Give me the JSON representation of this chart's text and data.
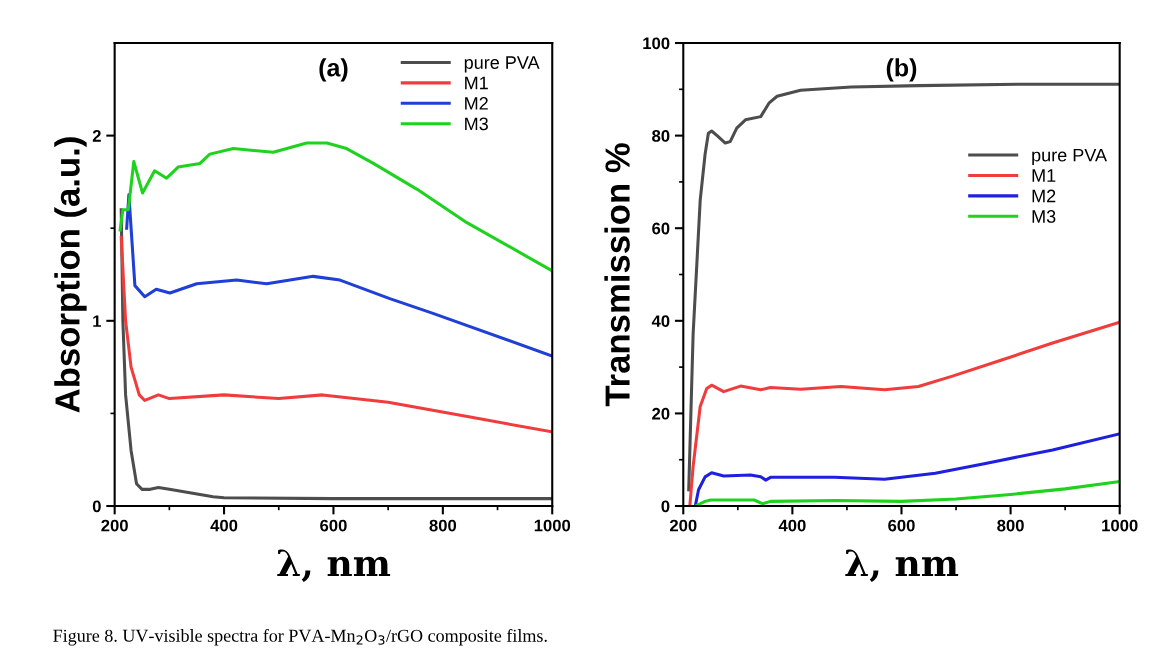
{
  "chart_data": [
    {
      "type": "line",
      "title": "(a)",
      "xlabel": "λ, nm",
      "ylabel": "Absorption (a.u.)",
      "xlim": [
        200,
        1000
      ],
      "ylim": [
        0,
        2.5
      ],
      "xticks": [
        200,
        {
          "value": 300,
          "label": null
        },
        400,
        {
          "value": 500,
          "label": null
        },
        600,
        {
          "value": 700,
          "label": null
        },
        800,
        {
          "value": 900,
          "label": null
        },
        1000
      ],
      "yticks": [
        0,
        {
          "value": 0.5,
          "label": null
        },
        1,
        {
          "value": 1.5,
          "label": null
        },
        2
      ],
      "legend": "top right",
      "grid": false,
      "marker": "none",
      "line_style": "solid",
      "series": [
        {
          "name": "pure PVA",
          "color": "#4d4d4d",
          "x": [
            212,
            215,
            220,
            230,
            240,
            250,
            265,
            280,
            300,
            340,
            380,
            400,
            600,
            1000
          ],
          "values": [
            1.6,
            1.0,
            0.6,
            0.3,
            0.12,
            0.09,
            0.09,
            0.1,
            0.09,
            0.07,
            0.05,
            0.045,
            0.04,
            0.04
          ]
        },
        {
          "name": "M1",
          "color": "#f03c3c",
          "x": [
            212,
            220,
            230,
            245,
            255,
            280,
            300,
            400,
            500,
            580,
            700,
            850,
            1000
          ],
          "values": [
            1.45,
            1.0,
            0.75,
            0.6,
            0.57,
            0.6,
            0.58,
            0.6,
            0.58,
            0.6,
            0.56,
            0.48,
            0.4
          ]
        },
        {
          "name": "M2",
          "color": "#1f3fd6",
          "x": [
            222,
            226,
            237,
            255,
            276,
            301,
            350,
            423,
            478,
            563,
            612,
            703,
            782,
            1000
          ],
          "values": [
            1.5,
            1.68,
            1.19,
            1.13,
            1.17,
            1.15,
            1.2,
            1.22,
            1.2,
            1.24,
            1.22,
            1.12,
            1.04,
            0.81
          ]
        },
        {
          "name": "M3",
          "color": "#1ed21e",
          "x": [
            210,
            215,
            225,
            235,
            251,
            273,
            295,
            316,
            356,
            374,
            417,
            490,
            551,
            588,
            624,
            673,
            753,
            844,
            1000
          ],
          "values": [
            1.49,
            1.6,
            1.6,
            1.86,
            1.69,
            1.81,
            1.77,
            1.83,
            1.85,
            1.9,
            1.93,
            1.91,
            1.96,
            1.96,
            1.93,
            1.85,
            1.71,
            1.53,
            1.27
          ]
        }
      ]
    },
    {
      "type": "line",
      "title": "(b)",
      "xlabel": "λ, nm",
      "ylabel": "Transmission %",
      "xlim": [
        200,
        1000
      ],
      "ylim": [
        0,
        100
      ],
      "xticks": [
        200,
        {
          "value": 300,
          "label": null
        },
        400,
        {
          "value": 500,
          "label": null
        },
        600,
        {
          "value": 700,
          "label": null
        },
        800,
        {
          "value": 900,
          "label": null
        },
        1000
      ],
      "yticks": [
        0,
        {
          "value": 10,
          "label": null
        },
        20,
        {
          "value": 30,
          "label": null
        },
        40,
        {
          "value": 50,
          "label": null
        },
        60,
        {
          "value": 70,
          "label": null
        },
        80,
        {
          "value": 90,
          "label": null
        },
        100
      ],
      "legend": "right",
      "grid": false,
      "marker": "none",
      "line_style": "solid",
      "annotations": [
        "Figure 8. UV-visible spectra for PVA-Mn$_{2}$O$_{3}$/rGO composite films."
      ],
      "series": [
        {
          "name": "pure PVA",
          "color": "#4d4d4d",
          "x": [
            210,
            218,
            231,
            240,
            246,
            252,
            262,
            277,
            286,
            298,
            314,
            342,
            357,
            372,
            415,
            508,
            631,
            815,
            1000
          ],
          "values": [
            3.5,
            37,
            66,
            76,
            80.5,
            81,
            80,
            78.4,
            78.7,
            81.6,
            83.4,
            84.1,
            87,
            88.5,
            89.8,
            90.5,
            90.8,
            91.1,
            91.1
          ]
        },
        {
          "name": "M1",
          "color": "#f03c3c",
          "x": [
            212,
            218,
            231,
            243,
            252,
            274,
            305,
            342,
            360,
            415,
            489,
            569,
            631,
            692,
            785,
            877,
            1000
          ],
          "values": [
            0,
            8.5,
            21.5,
            25.4,
            26.1,
            24.7,
            25.9,
            25.1,
            25.6,
            25.2,
            25.8,
            25.1,
            25.8,
            28,
            31.6,
            35.2,
            39.7
          ]
        },
        {
          "name": "M2",
          "color": "#1f1fe0",
          "x": [
            222,
            228,
            240,
            252,
            274,
            323,
            342,
            351,
            360,
            477,
            569,
            662,
            754,
            877,
            1000
          ],
          "values": [
            0,
            3.5,
            6.3,
            7.2,
            6.5,
            6.7,
            6.3,
            5.6,
            6.2,
            6.2,
            5.8,
            7.1,
            9.2,
            12.1,
            15.6
          ]
        },
        {
          "name": "M3",
          "color": "#1ed21e",
          "x": [
            222,
            240,
            250,
            330,
            345,
            360,
            480,
            600,
            700,
            800,
            900,
            1000
          ],
          "values": [
            0,
            1.0,
            1.3,
            1.3,
            0.5,
            1.0,
            1.2,
            1.0,
            1.5,
            2.5,
            3.7,
            5.3
          ]
        }
      ]
    }
  ]
}
